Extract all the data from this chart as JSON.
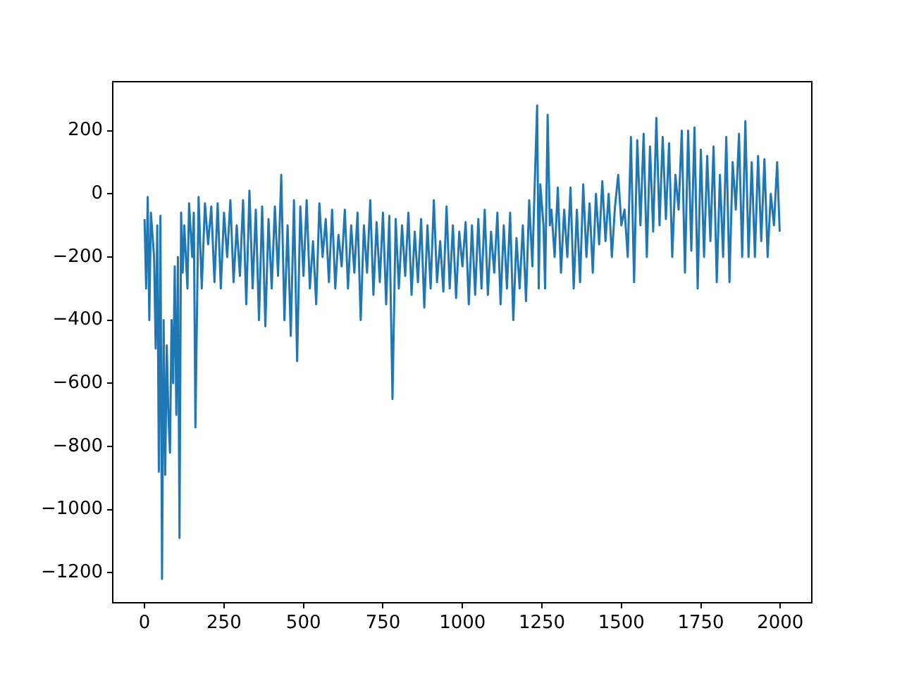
{
  "chart_data": {
    "type": "line",
    "xlim": [
      -100,
      2099
    ],
    "ylim": [
      -1295,
      355
    ],
    "xticks": [
      0,
      250,
      500,
      750,
      1000,
      1250,
      1500,
      1750,
      2000
    ],
    "yticks": [
      -1200,
      -1000,
      -800,
      -600,
      -400,
      -200,
      0,
      200
    ],
    "series": [
      {
        "color": "#1f77b4",
        "x": [
          0,
          5,
          10,
          15,
          20,
          30,
          35,
          40,
          45,
          50,
          55,
          60,
          65,
          70,
          75,
          80,
          85,
          90,
          95,
          100,
          105,
          110,
          115,
          120,
          125,
          135,
          140,
          150,
          155,
          160,
          170,
          180,
          190,
          200,
          210,
          220,
          230,
          240,
          250,
          260,
          270,
          280,
          290,
          300,
          310,
          320,
          330,
          340,
          350,
          360,
          370,
          380,
          390,
          400,
          410,
          420,
          430,
          440,
          450,
          460,
          470,
          480,
          490,
          500,
          510,
          520,
          530,
          540,
          550,
          560,
          570,
          580,
          590,
          600,
          610,
          620,
          630,
          640,
          650,
          660,
          670,
          680,
          690,
          700,
          710,
          720,
          730,
          740,
          750,
          760,
          770,
          780,
          790,
          800,
          810,
          820,
          830,
          840,
          850,
          860,
          870,
          880,
          890,
          900,
          910,
          920,
          930,
          940,
          950,
          960,
          970,
          980,
          990,
          1000,
          1010,
          1020,
          1030,
          1040,
          1050,
          1060,
          1070,
          1080,
          1090,
          1100,
          1110,
          1120,
          1130,
          1140,
          1150,
          1160,
          1170,
          1180,
          1190,
          1200,
          1210,
          1220,
          1225,
          1235,
          1240,
          1245,
          1255,
          1260,
          1268,
          1275,
          1280,
          1290,
          1300,
          1310,
          1320,
          1330,
          1340,
          1350,
          1360,
          1370,
          1380,
          1390,
          1400,
          1410,
          1420,
          1430,
          1440,
          1450,
          1460,
          1470,
          1480,
          1490,
          1500,
          1510,
          1520,
          1530,
          1540,
          1550,
          1560,
          1570,
          1580,
          1590,
          1600,
          1610,
          1620,
          1630,
          1640,
          1650,
          1660,
          1670,
          1680,
          1690,
          1700,
          1710,
          1720,
          1730,
          1740,
          1750,
          1760,
          1770,
          1780,
          1790,
          1800,
          1810,
          1820,
          1830,
          1840,
          1850,
          1860,
          1870,
          1880,
          1890,
          1900,
          1910,
          1920,
          1930,
          1940,
          1950,
          1960,
          1970,
          1980,
          1990,
          1998
        ],
        "values": [
          -80,
          -300,
          -10,
          -400,
          -60,
          -200,
          -490,
          -100,
          -880,
          -70,
          -1220,
          -400,
          -890,
          -480,
          -700,
          -820,
          -400,
          -600,
          -230,
          -700,
          -200,
          -1090,
          -60,
          -250,
          -100,
          -300,
          -30,
          -200,
          -60,
          -740,
          -10,
          -300,
          -30,
          -160,
          -40,
          -280,
          -30,
          -300,
          -60,
          -200,
          -20,
          -280,
          -100,
          -260,
          -20,
          -350,
          10,
          -300,
          -50,
          -400,
          -40,
          -420,
          -80,
          -300,
          -40,
          -260,
          60,
          -400,
          -100,
          -450,
          -20,
          -530,
          -40,
          -260,
          -20,
          -300,
          -150,
          -350,
          -30,
          -200,
          -80,
          -280,
          -50,
          -300,
          -130,
          -230,
          -50,
          -300,
          -100,
          -250,
          -60,
          -400,
          -100,
          -250,
          -20,
          -320,
          -90,
          -280,
          -60,
          -350,
          -70,
          -650,
          -80,
          -300,
          -100,
          -260,
          -60,
          -320,
          -120,
          -280,
          -80,
          -360,
          -100,
          -300,
          -20,
          -280,
          -150,
          -310,
          -40,
          -300,
          -100,
          -330,
          -120,
          -230,
          -90,
          -350,
          -100,
          -320,
          -80,
          -300,
          -50,
          -320,
          -120,
          -250,
          -60,
          -350,
          -100,
          -300,
          -60,
          -400,
          -140,
          -300,
          -100,
          -340,
          -20,
          -230,
          -50,
          280,
          -300,
          30,
          -100,
          -300,
          250,
          -100,
          -50,
          -200,
          20,
          -250,
          -50,
          -200,
          20,
          -300,
          -50,
          -280,
          30,
          -200,
          -30,
          -250,
          0,
          -160,
          40,
          -150,
          0,
          -200,
          -40,
          60,
          -100,
          -50,
          -200,
          180,
          -280,
          170,
          -100,
          190,
          -200,
          150,
          -120,
          240,
          -100,
          180,
          -80,
          160,
          -200,
          60,
          -50,
          200,
          -250,
          200,
          -180,
          210,
          -300,
          140,
          -200,
          120,
          -150,
          150,
          -280,
          60,
          -200,
          180,
          -280,
          100,
          -50,
          190,
          -200,
          230,
          -200,
          100,
          -200,
          120,
          -150,
          110,
          -200,
          0,
          -100,
          100,
          -120
        ]
      }
    ]
  }
}
